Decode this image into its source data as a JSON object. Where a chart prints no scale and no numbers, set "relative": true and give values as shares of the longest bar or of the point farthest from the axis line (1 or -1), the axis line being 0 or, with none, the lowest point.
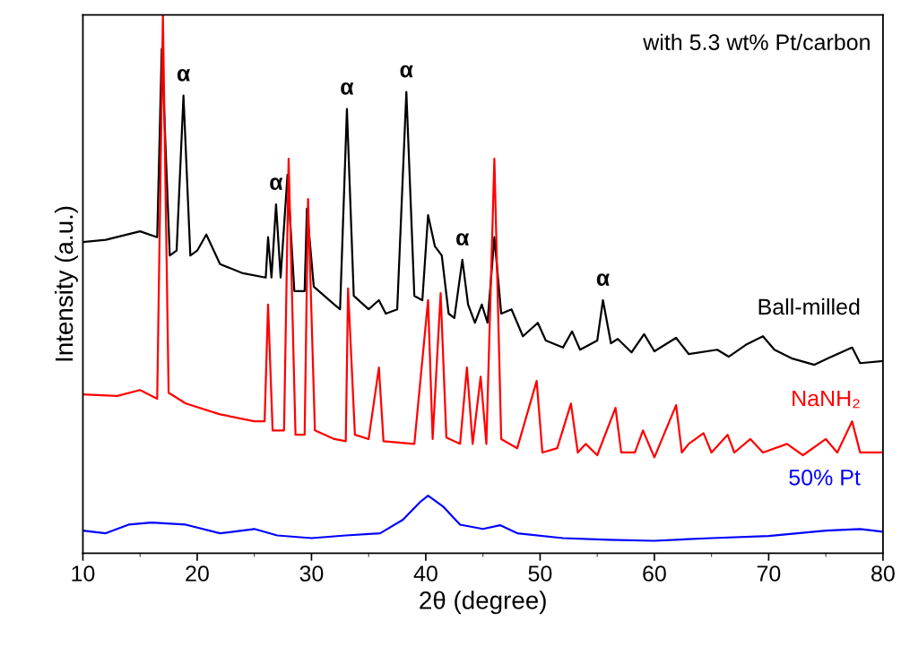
{
  "chart_data": {
    "type": "line",
    "relative": true,
    "xlabel": "2θ (degree)",
    "ylabel": "Intensity (a.u.)",
    "xlim": [
      10,
      80
    ],
    "xticks": [
      10,
      20,
      30,
      40,
      50,
      60,
      70,
      80
    ],
    "legend": false,
    "grid": false,
    "marker": "none",
    "line_style": "solid",
    "annotations": [
      "with 5.3 wt% Pt/carbon",
      {
        "text": "α",
        "x": 18.8,
        "y": 0.85
      },
      {
        "text": "α",
        "x": 26.9,
        "y": 0.648
      },
      {
        "text": "α",
        "x": 33.1,
        "y": 0.825
      },
      {
        "text": "α",
        "x": 38.3,
        "y": 0.857
      },
      {
        "text": "α",
        "x": 43.2,
        "y": 0.545
      },
      {
        "text": "α",
        "x": 55.5,
        "y": 0.47
      }
    ],
    "series": [
      {
        "name": "Ball-milled",
        "color": "#000000",
        "x": [
          10,
          12,
          15,
          16.5,
          16.9,
          17.6,
          18.2,
          18.8,
          19.4,
          20,
          20.8,
          22,
          24,
          26.0,
          26.2,
          26.5,
          26.9,
          27.3,
          27.9,
          28.5,
          29.4,
          29.6,
          30.2,
          32,
          32.5,
          33.1,
          33.7,
          35,
          35.9,
          36.5,
          37.5,
          38.3,
          39,
          39.7,
          40.2,
          40.8,
          41.4,
          42,
          42.5,
          43.2,
          43.7,
          44.3,
          44.9,
          45.4,
          46.0,
          46.6,
          47.5,
          48.5,
          49.8,
          50.5,
          52,
          52.8,
          53.5,
          55.0,
          55.5,
          56.2,
          56.8,
          58,
          59.1,
          60,
          61.9,
          63,
          65.5,
          66.5,
          68,
          69.5,
          70.5,
          72,
          74,
          75.2,
          77.3,
          78,
          80
        ],
        "values": [
          0.578,
          0.582,
          0.598,
          0.587,
          0.937,
          0.553,
          0.562,
          0.85,
          0.553,
          0.562,
          0.592,
          0.537,
          0.52,
          0.512,
          0.587,
          0.512,
          0.648,
          0.512,
          0.703,
          0.487,
          0.487,
          0.64,
          0.495,
          0.462,
          0.453,
          0.825,
          0.478,
          0.453,
          0.47,
          0.445,
          0.453,
          0.857,
          0.478,
          0.47,
          0.628,
          0.57,
          0.553,
          0.445,
          0.437,
          0.545,
          0.462,
          0.428,
          0.462,
          0.428,
          0.587,
          0.445,
          0.453,
          0.403,
          0.428,
          0.395,
          0.382,
          0.412,
          0.378,
          0.395,
          0.47,
          0.39,
          0.398,
          0.373,
          0.407,
          0.375,
          0.4,
          0.37,
          0.378,
          0.365,
          0.387,
          0.403,
          0.378,
          0.362,
          0.35,
          0.362,
          0.382,
          0.353,
          0.357
        ]
      },
      {
        "name": "NaNH₂",
        "color": "#ff0000",
        "x": [
          10,
          13,
          15,
          16.5,
          17.0,
          17.5,
          19,
          22,
          25,
          25.9,
          26.2,
          26.6,
          27.6,
          28.0,
          28.6,
          29.4,
          29.7,
          30.3,
          32,
          33.0,
          33.2,
          33.8,
          35.0,
          35.9,
          36.3,
          39,
          40.2,
          40.6,
          41.3,
          41.8,
          43.0,
          43.6,
          44.1,
          44.8,
          45.3,
          46.0,
          46.6,
          48,
          49.7,
          50.2,
          51.5,
          52.7,
          53.3,
          54,
          55,
          56.6,
          57.1,
          58.3,
          59.0,
          60,
          61.9,
          62.4,
          63,
          64.3,
          65,
          66.4,
          67,
          68.4,
          69.5,
          71.6,
          73,
          75.0,
          76,
          77.3,
          78,
          80
        ],
        "values": [
          0.295,
          0.292,
          0.303,
          0.287,
          1.0,
          0.298,
          0.278,
          0.258,
          0.245,
          0.245,
          0.462,
          0.228,
          0.228,
          0.733,
          0.22,
          0.22,
          0.658,
          0.228,
          0.212,
          0.208,
          0.492,
          0.22,
          0.212,
          0.345,
          0.208,
          0.203,
          0.47,
          0.212,
          0.483,
          0.215,
          0.203,
          0.345,
          0.203,
          0.328,
          0.203,
          0.733,
          0.212,
          0.195,
          0.32,
          0.187,
          0.195,
          0.278,
          0.187,
          0.203,
          0.182,
          0.27,
          0.187,
          0.187,
          0.228,
          0.178,
          0.275,
          0.187,
          0.203,
          0.223,
          0.187,
          0.22,
          0.187,
          0.212,
          0.187,
          0.203,
          0.182,
          0.212,
          0.187,
          0.245,
          0.187,
          0.187
        ]
      },
      {
        "name": "50% Pt",
        "color": "#0000ff",
        "x": [
          10,
          12,
          14,
          16,
          19,
          22,
          25,
          27,
          30,
          33,
          36,
          38,
          39.5,
          40.2,
          41.5,
          43,
          45,
          46.5,
          48,
          52,
          56,
          60,
          65,
          70,
          75,
          78,
          80
        ],
        "values": [
          0.042,
          0.037,
          0.053,
          0.057,
          0.053,
          0.037,
          0.045,
          0.033,
          0.028,
          0.033,
          0.037,
          0.062,
          0.095,
          0.107,
          0.087,
          0.053,
          0.045,
          0.052,
          0.037,
          0.028,
          0.025,
          0.023,
          0.028,
          0.032,
          0.042,
          0.045,
          0.04
        ]
      }
    ]
  }
}
